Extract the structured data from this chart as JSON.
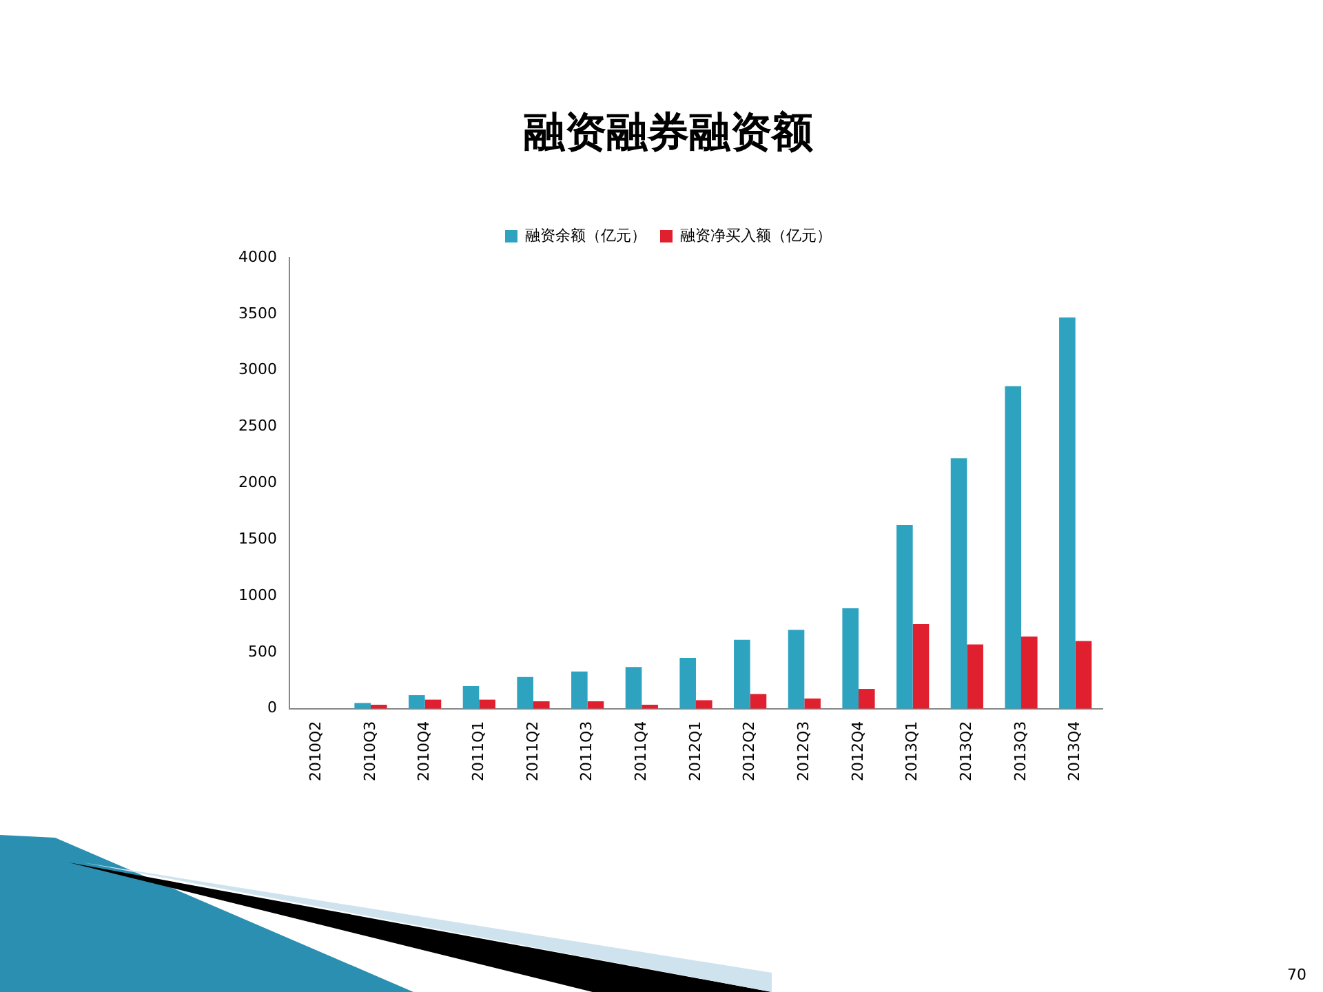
{
  "chart_data": {
    "type": "bar",
    "title": "融资融券融资额",
    "categories": [
      "2010Q2",
      "2010Q3",
      "2010Q4",
      "2011Q1",
      "2011Q2",
      "2011Q3",
      "2011Q4",
      "2012Q1",
      "2012Q2",
      "2012Q3",
      "2012Q4",
      "2013Q1",
      "2013Q2",
      "2013Q3",
      "2013Q4"
    ],
    "series": [
      {
        "name": "融资余额（亿元）",
        "color": "#2ea3c0",
        "values": [
          0,
          50,
          120,
          200,
          280,
          330,
          370,
          450,
          610,
          700,
          890,
          1630,
          2220,
          2860,
          3470
        ]
      },
      {
        "name": "融资净买入额（亿元）",
        "color": "#e0202e",
        "values": [
          0,
          35,
          80,
          80,
          65,
          65,
          35,
          75,
          130,
          90,
          175,
          750,
          570,
          640,
          600
        ]
      }
    ],
    "ylim": [
      0,
      4000
    ],
    "yticks": [
      0,
      500,
      1000,
      1500,
      2000,
      2500,
      3000,
      3500,
      4000
    ],
    "grid": false,
    "legend": "top",
    "annotations": [
      "70"
    ]
  }
}
